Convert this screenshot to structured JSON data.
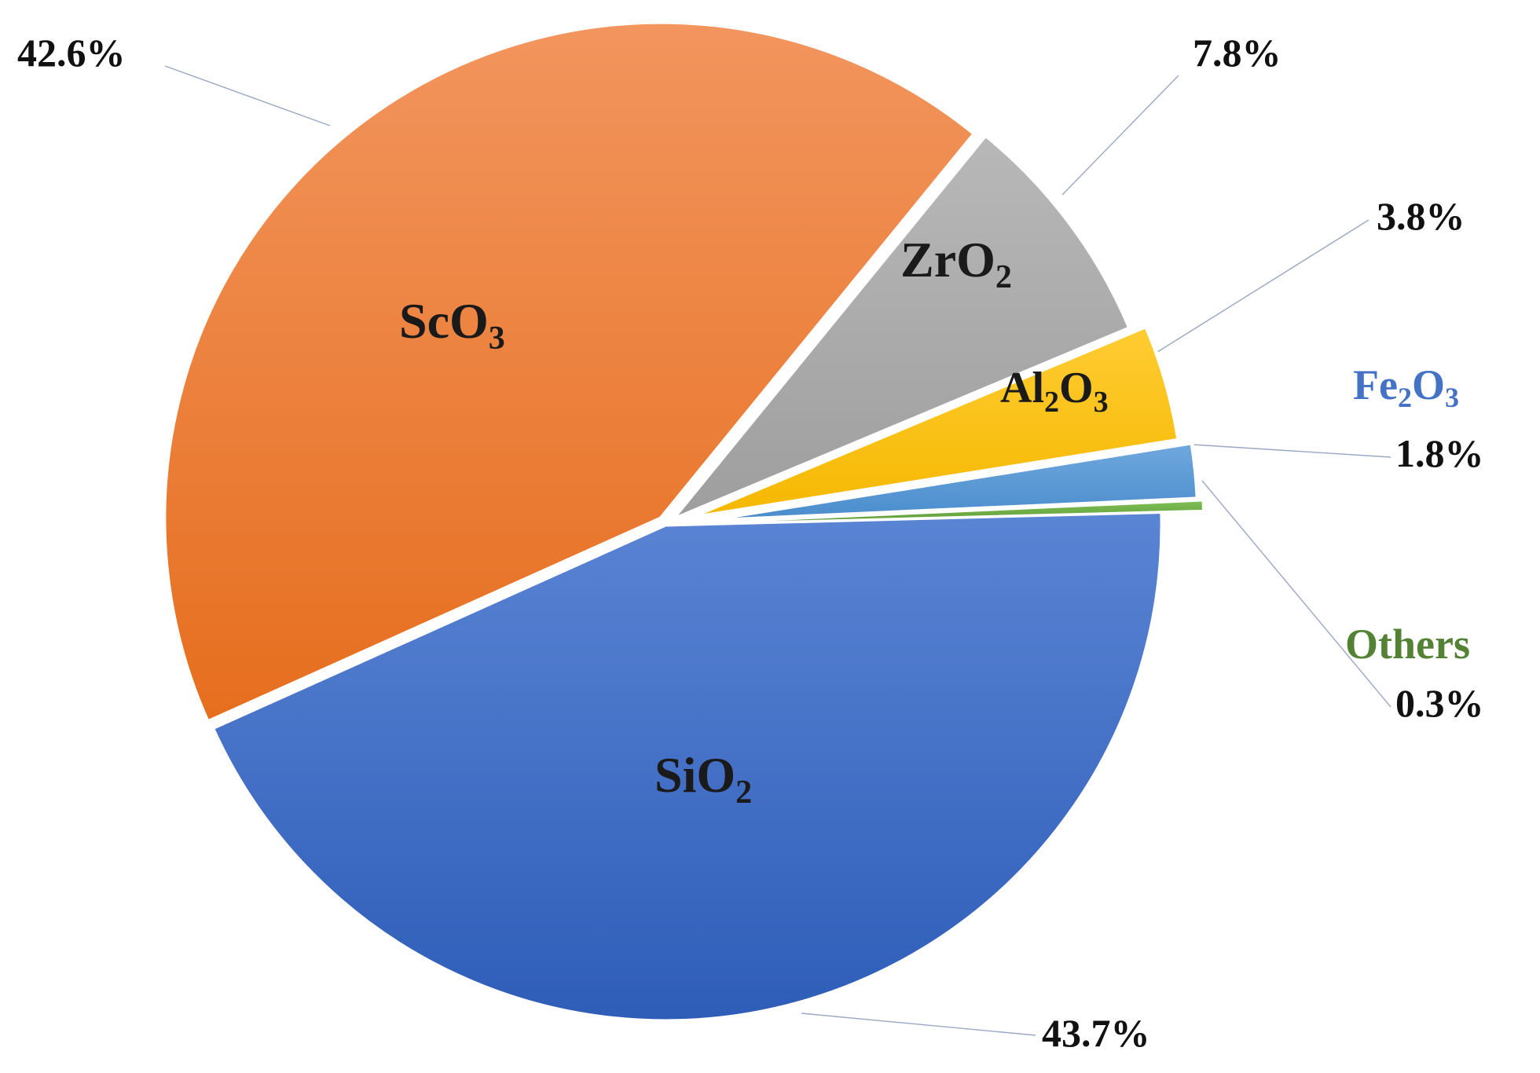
{
  "chart_data": {
    "type": "pie",
    "title": "",
    "slices": [
      {
        "key": "sio2",
        "label": "SiO2",
        "label_base": "SiO",
        "label_sub": "2",
        "value": 43.7,
        "value_label": "43.7%",
        "color": "#3D6CC9"
      },
      {
        "key": "sco3",
        "label": "ScO3",
        "label_base": "ScO",
        "label_sub": "3",
        "value": 42.6,
        "value_label": "42.6%",
        "color": "#EE7A2E"
      },
      {
        "key": "zro2",
        "label": "ZrO2",
        "label_base": "ZrO",
        "label_sub": "2",
        "value": 7.8,
        "value_label": "7.8%",
        "color": "#A8A8A8"
      },
      {
        "key": "al2o3",
        "label": "Al2O3",
        "label_parts": [
          "Al",
          "2",
          "O",
          "3"
        ],
        "value": 3.8,
        "value_label": "3.8%",
        "color": "#FFC000"
      },
      {
        "key": "fe2o3",
        "label": "Fe2O3",
        "label_parts": [
          "Fe",
          "2",
          "O",
          "3"
        ],
        "value": 1.8,
        "value_label": "1.8%",
        "color": "#5B9BD5",
        "label_color": "#4472C4"
      },
      {
        "key": "others",
        "label": "Others",
        "value": 0.3,
        "value_label": "0.3%",
        "color": "#70AD47",
        "label_color": "#548235"
      }
    ],
    "legend": "none"
  }
}
